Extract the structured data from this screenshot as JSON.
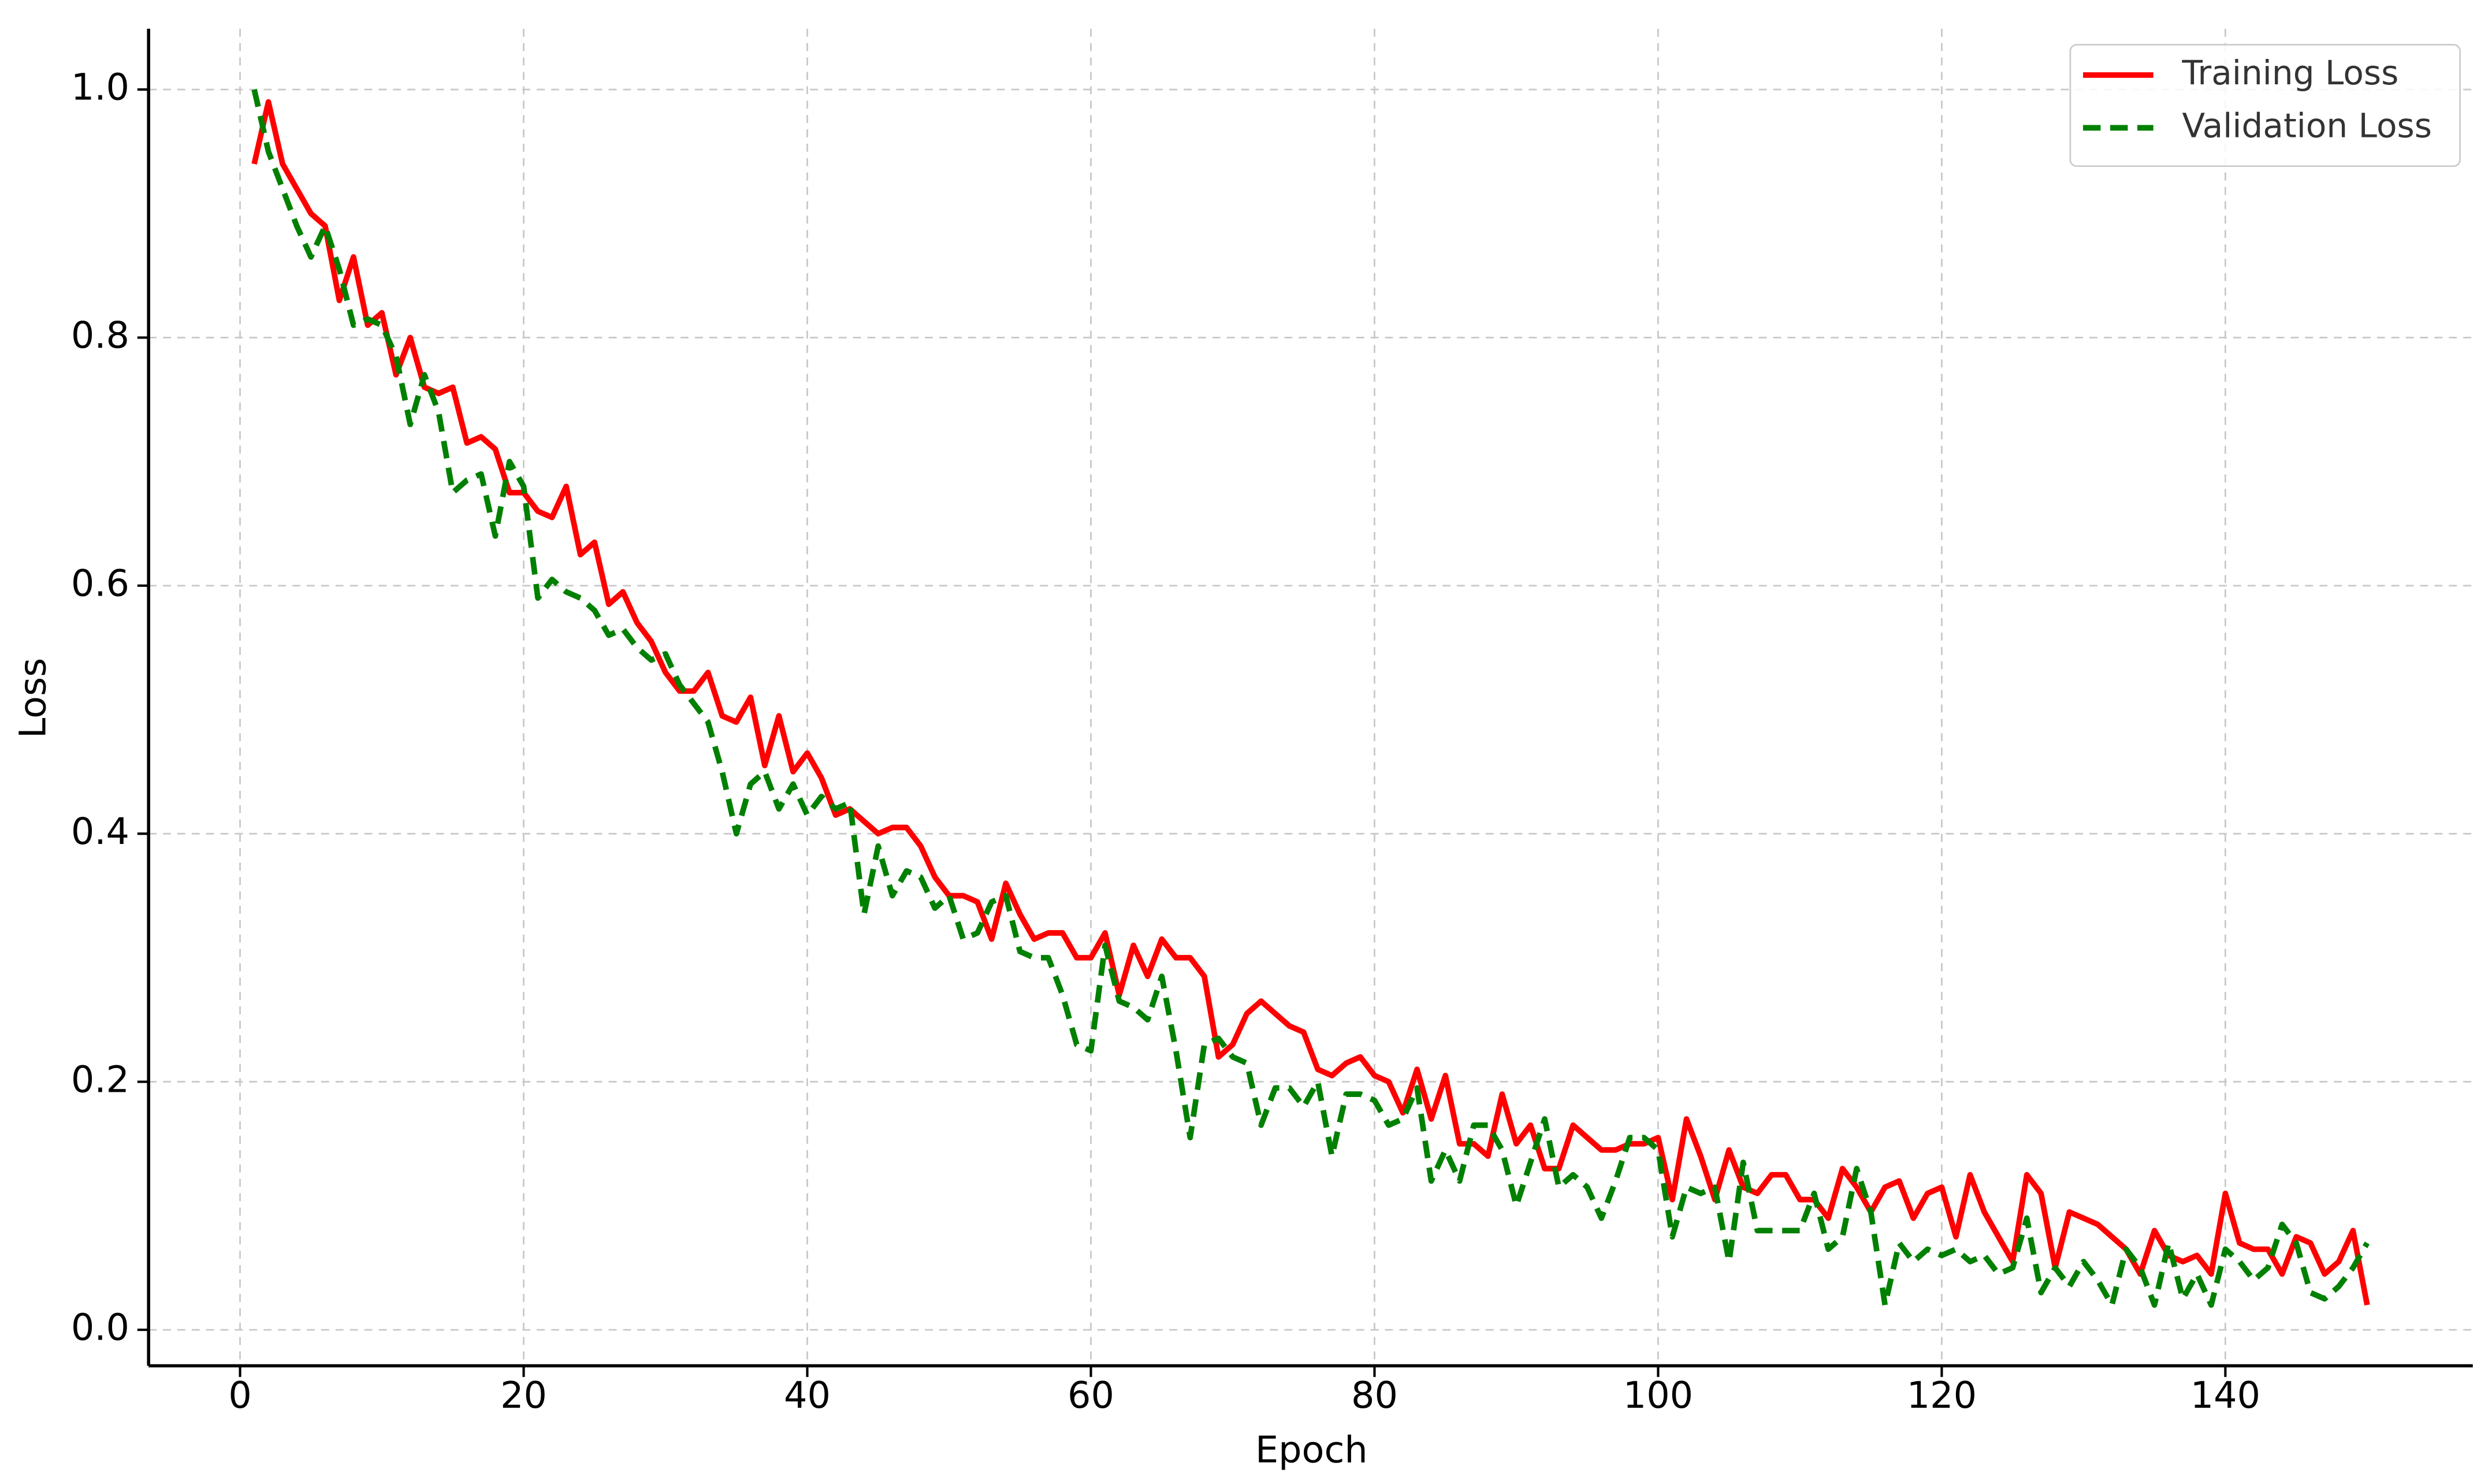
{
  "chart_data": {
    "type": "line",
    "xlabel": "Epoch",
    "ylabel": "Loss",
    "x": [
      1,
      2,
      3,
      4,
      5,
      6,
      7,
      8,
      9,
      10,
      11,
      12,
      13,
      14,
      15,
      16,
      17,
      18,
      19,
      20,
      21,
      22,
      23,
      24,
      25,
      26,
      27,
      28,
      29,
      30,
      31,
      32,
      33,
      34,
      35,
      36,
      37,
      38,
      39,
      40,
      41,
      42,
      43,
      44,
      45,
      46,
      47,
      48,
      49,
      50,
      51,
      52,
      53,
      54,
      55,
      56,
      57,
      58,
      59,
      60,
      61,
      62,
      63,
      64,
      65,
      66,
      67,
      68,
      69,
      70,
      71,
      72,
      73,
      74,
      75,
      76,
      77,
      78,
      79,
      80,
      81,
      82,
      83,
      84,
      85,
      86,
      87,
      88,
      89,
      90,
      91,
      92,
      93,
      94,
      95,
      96,
      97,
      98,
      99,
      100,
      101,
      102,
      103,
      104,
      105,
      106,
      107,
      108,
      109,
      110,
      111,
      112,
      113,
      114,
      115,
      116,
      117,
      118,
      119,
      120,
      121,
      122,
      123,
      124,
      125,
      126,
      127,
      128,
      129,
      130,
      131,
      132,
      133,
      134,
      135,
      136,
      137,
      138,
      139,
      140,
      141,
      142,
      143,
      144,
      145,
      146,
      147,
      148,
      149,
      150
    ],
    "series": [
      {
        "name": "Training Loss",
        "color": "#ff0000",
        "dash": false,
        "values": [
          0.94,
          0.99,
          0.94,
          0.92,
          0.9,
          0.89,
          0.83,
          0.865,
          0.81,
          0.82,
          0.77,
          0.8,
          0.76,
          0.755,
          0.76,
          0.715,
          0.72,
          0.71,
          0.675,
          0.675,
          0.66,
          0.655,
          0.68,
          0.625,
          0.635,
          0.585,
          0.595,
          0.57,
          0.555,
          0.53,
          0.515,
          0.515,
          0.53,
          0.495,
          0.49,
          0.51,
          0.455,
          0.495,
          0.45,
          0.465,
          0.445,
          0.415,
          0.42,
          0.41,
          0.4,
          0.405,
          0.405,
          0.39,
          0.365,
          0.35,
          0.35,
          0.345,
          0.315,
          0.36,
          0.335,
          0.315,
          0.32,
          0.32,
          0.3,
          0.3,
          0.32,
          0.27,
          0.31,
          0.285,
          0.315,
          0.3,
          0.3,
          0.285,
          0.22,
          0.23,
          0.255,
          0.265,
          0.255,
          0.245,
          0.24,
          0.21,
          0.205,
          0.215,
          0.22,
          0.205,
          0.2,
          0.175,
          0.21,
          0.17,
          0.205,
          0.15,
          0.15,
          0.14,
          0.19,
          0.15,
          0.165,
          0.13,
          0.13,
          0.165,
          0.155,
          0.145,
          0.145,
          0.15,
          0.15,
          0.155,
          0.105,
          0.17,
          0.14,
          0.105,
          0.145,
          0.115,
          0.11,
          0.125,
          0.125,
          0.105,
          0.105,
          0.09,
          0.13,
          0.115,
          0.095,
          0.115,
          0.12,
          0.09,
          0.11,
          0.115,
          0.075,
          0.125,
          0.095,
          0.075,
          0.055,
          0.125,
          0.11,
          0.05,
          0.095,
          0.09,
          0.085,
          0.075,
          0.065,
          0.045,
          0.08,
          0.06,
          0.055,
          0.06,
          0.045,
          0.11,
          0.07,
          0.065,
          0.065,
          0.045,
          0.075,
          0.07,
          0.045,
          0.055,
          0.08,
          0.02
        ]
      },
      {
        "name": "Validation Loss",
        "color": "#008000",
        "dash": true,
        "values": [
          1.0,
          0.95,
          0.92,
          0.89,
          0.865,
          0.89,
          0.855,
          0.81,
          0.815,
          0.81,
          0.785,
          0.73,
          0.77,
          0.74,
          0.675,
          0.685,
          0.69,
          0.64,
          0.7,
          0.68,
          0.59,
          0.605,
          0.595,
          0.59,
          0.58,
          0.56,
          0.565,
          0.55,
          0.54,
          0.545,
          0.52,
          0.505,
          0.49,
          0.45,
          0.4,
          0.44,
          0.45,
          0.42,
          0.44,
          0.415,
          0.43,
          0.42,
          0.425,
          0.335,
          0.39,
          0.35,
          0.37,
          0.365,
          0.34,
          0.35,
          0.315,
          0.32,
          0.345,
          0.35,
          0.305,
          0.3,
          0.3,
          0.27,
          0.23,
          0.225,
          0.31,
          0.265,
          0.26,
          0.25,
          0.285,
          0.225,
          0.155,
          0.23,
          0.235,
          0.22,
          0.215,
          0.165,
          0.195,
          0.195,
          0.18,
          0.2,
          0.14,
          0.19,
          0.19,
          0.185,
          0.165,
          0.17,
          0.195,
          0.12,
          0.145,
          0.12,
          0.165,
          0.165,
          0.145,
          0.1,
          0.135,
          0.17,
          0.115,
          0.125,
          0.115,
          0.09,
          0.12,
          0.155,
          0.155,
          0.145,
          0.075,
          0.115,
          0.11,
          0.115,
          0.055,
          0.135,
          0.08,
          0.08,
          0.08,
          0.08,
          0.11,
          0.065,
          0.075,
          0.13,
          0.095,
          0.02,
          0.07,
          0.055,
          0.065,
          0.06,
          0.065,
          0.055,
          0.06,
          0.045,
          0.05,
          0.09,
          0.03,
          0.05,
          0.035,
          0.055,
          0.04,
          0.02,
          0.065,
          0.05,
          0.02,
          0.07,
          0.025,
          0.045,
          0.02,
          0.065,
          0.055,
          0.04,
          0.05,
          0.085,
          0.07,
          0.03,
          0.025,
          0.035,
          0.05,
          0.07
        ]
      }
    ],
    "xlim": [
      -6.45,
      157.45
    ],
    "ylim": [
      -0.029,
      1.049
    ],
    "xticks": [
      0,
      20,
      40,
      60,
      80,
      100,
      120,
      140
    ],
    "yticks": [
      {
        "value": 0,
        "label": "0.0"
      },
      0.2,
      0.4,
      0.6,
      0.8,
      {
        "value": 1,
        "label": "1.0"
      }
    ],
    "grid": true,
    "legend": "upper right"
  }
}
